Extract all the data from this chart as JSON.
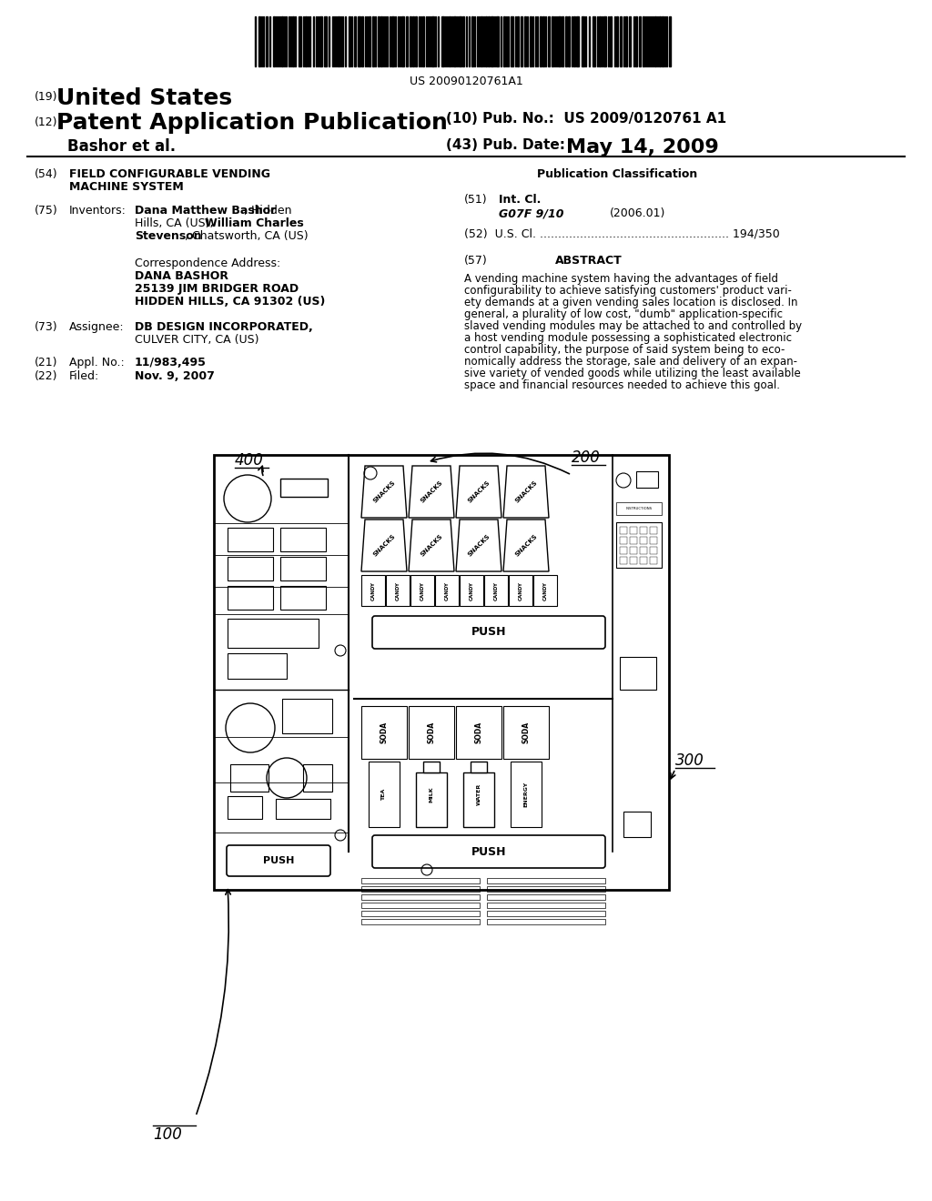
{
  "bg_color": "#ffffff",
  "barcode_text": "US 20090120761A1",
  "abstract_lines": [
    "A vending machine system having the advantages of field",
    "configurability to achieve satisfying customers' product vari-",
    "ety demands at a given vending sales location is disclosed. In",
    "general, a plurality of low cost, \"dumb\" application-specific",
    "slaved vending modules may be attached to and controlled by",
    "a host vending module possessing a sophisticated electronic",
    "control capability, the purpose of said system being to eco-",
    "nomically address the storage, sale and delivery of an expan-",
    "sive variety of vended goods while utilizing the least available",
    "space and financial resources needed to achieve this goal."
  ],
  "bottle_labels": [
    "TEA",
    "MILK",
    "WATER",
    "ENERGY"
  ]
}
